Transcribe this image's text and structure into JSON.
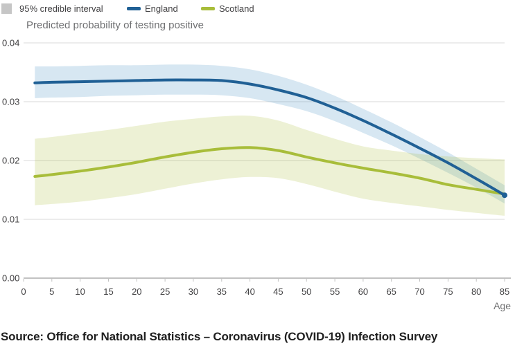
{
  "legend": {
    "ci_label": "95% credible interval",
    "england_label": "England",
    "scotland_label": "Scotland"
  },
  "title": "Predicted probability of testing positive",
  "xlabel": "Age",
  "source": "Source: Office for National Statistics – Coronavirus (COVID-19) Infection Survey",
  "colors": {
    "england": "#206095",
    "scotland": "#A8BD3A",
    "england_band": "rgba(74,144,196,0.22)",
    "scotland_band": "rgba(168,189,58,0.21)",
    "ci_swatch": "#C6C6C6",
    "gridline": "#D9D9D9",
    "axis_line": "#C1C1C1",
    "tick_text": "#414042",
    "title_text": "#6E6F71",
    "axis_label_text": "#6F7071"
  },
  "chart_data": {
    "type": "line",
    "title": "Predicted probability of testing positive",
    "xlabel": "Age",
    "ylabel": "",
    "xlim": [
      0,
      85
    ],
    "ylim": [
      0,
      0.04
    ],
    "grid": true,
    "legend_position": "top",
    "x_ticks": [
      0,
      5,
      10,
      15,
      20,
      25,
      30,
      35,
      40,
      45,
      50,
      55,
      60,
      65,
      70,
      75,
      80,
      85
    ],
    "y_ticks": [
      "0.00",
      "0.01",
      "0.02",
      "0.03",
      "0.04"
    ],
    "ages": [
      2,
      5,
      10,
      15,
      20,
      25,
      30,
      35,
      40,
      45,
      50,
      55,
      60,
      65,
      70,
      75,
      80,
      85
    ],
    "series": [
      {
        "name": "England",
        "band_name": "England 95% credible interval",
        "values": [
          0.0332,
          0.0333,
          0.0334,
          0.0335,
          0.0336,
          0.0337,
          0.0337,
          0.0336,
          0.033,
          0.032,
          0.0307,
          0.0289,
          0.0268,
          0.0245,
          0.0221,
          0.0196,
          0.0169,
          0.0141
        ],
        "upper": [
          0.036,
          0.036,
          0.0361,
          0.0362,
          0.0362,
          0.0363,
          0.0363,
          0.0361,
          0.0355,
          0.0344,
          0.0329,
          0.031,
          0.0288,
          0.0265,
          0.024,
          0.0214,
          0.0186,
          0.0158
        ],
        "lower": [
          0.0306,
          0.0307,
          0.0308,
          0.031,
          0.0311,
          0.0312,
          0.0312,
          0.0311,
          0.0306,
          0.0296,
          0.0284,
          0.0267,
          0.0247,
          0.0226,
          0.0203,
          0.0179,
          0.0154,
          0.0127
        ],
        "end_dot": true
      },
      {
        "name": "Scotland",
        "band_name": "Scotland 95% credible interval",
        "values": [
          0.0173,
          0.0176,
          0.0182,
          0.0189,
          0.0197,
          0.0206,
          0.0214,
          0.022,
          0.0222,
          0.0217,
          0.0206,
          0.0196,
          0.0187,
          0.0179,
          0.017,
          0.0159,
          0.0151,
          0.0143
        ],
        "upper": [
          0.0237,
          0.024,
          0.0246,
          0.0252,
          0.0259,
          0.0266,
          0.0271,
          0.0275,
          0.0276,
          0.0268,
          0.0252,
          0.0237,
          0.0224,
          0.0217,
          0.0211,
          0.0207,
          0.0204,
          0.0202
        ],
        "lower": [
          0.0124,
          0.0126,
          0.013,
          0.0136,
          0.0143,
          0.0152,
          0.0161,
          0.0168,
          0.0172,
          0.017,
          0.016,
          0.0147,
          0.0135,
          0.0128,
          0.0122,
          0.0116,
          0.0111,
          0.0106
        ],
        "end_dot": false
      }
    ]
  }
}
